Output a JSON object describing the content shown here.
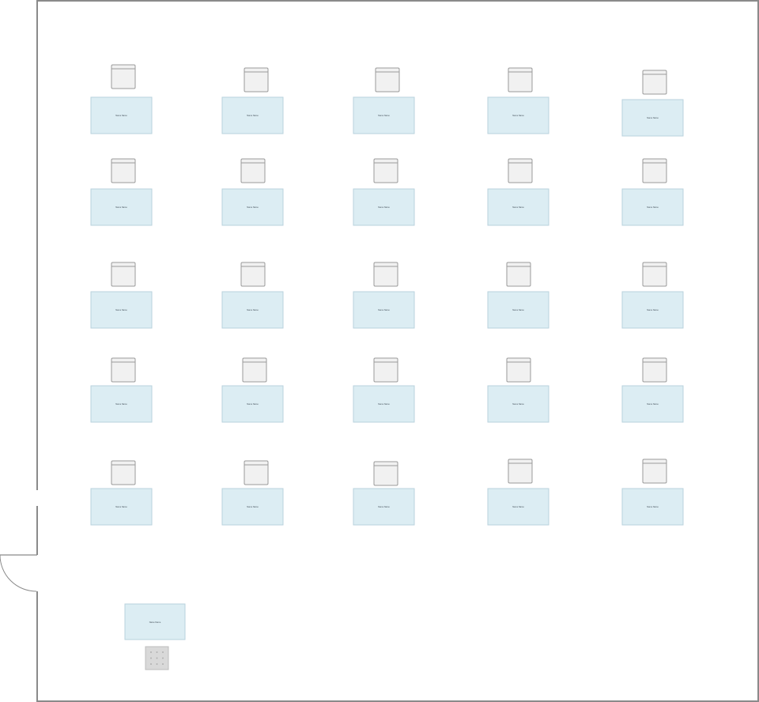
{
  "room": {
    "wall_color": "#8a8a8a"
  },
  "palette": {
    "desk_fill": "#dcedf3",
    "desk_stroke": "#b9d2dc",
    "chair_fill": "#f1f1f1",
    "chair_stroke": "#9a9a9a",
    "teacher_chair_fill": "#d9d9d9"
  },
  "desk_label": "Name Name",
  "desk_rows": [
    {
      "desks": [
        {
          "label": "Name Name"
        },
        {
          "label": "Name Name"
        },
        {
          "label": "Name Name"
        },
        {
          "label": "Name Name"
        },
        {
          "label": "Name Name"
        }
      ]
    },
    {
      "desks": [
        {
          "label": "Name Name"
        },
        {
          "label": "Name Name"
        },
        {
          "label": "Name Name"
        },
        {
          "label": "Name Name"
        },
        {
          "label": "Name Name"
        }
      ]
    },
    {
      "desks": [
        {
          "label": "Name Name"
        },
        {
          "label": "Name Name"
        },
        {
          "label": "Name Name"
        },
        {
          "label": "Name Name"
        },
        {
          "label": "Name Name"
        }
      ]
    },
    {
      "desks": [
        {
          "label": "Name Name"
        },
        {
          "label": "Name Name"
        },
        {
          "label": "Name Name"
        },
        {
          "label": "Name Name"
        },
        {
          "label": "Name Name"
        }
      ]
    },
    {
      "desks": [
        {
          "label": "Name Name"
        },
        {
          "label": "Name Name"
        },
        {
          "label": "Name Name"
        },
        {
          "label": "Name Name"
        },
        {
          "label": "Name Name"
        }
      ]
    }
  ],
  "teacher_desk": {
    "label": "Name Name",
    "chair_icon": "office-chair-icon"
  },
  "door": {
    "icon": "door-swing-icon"
  }
}
